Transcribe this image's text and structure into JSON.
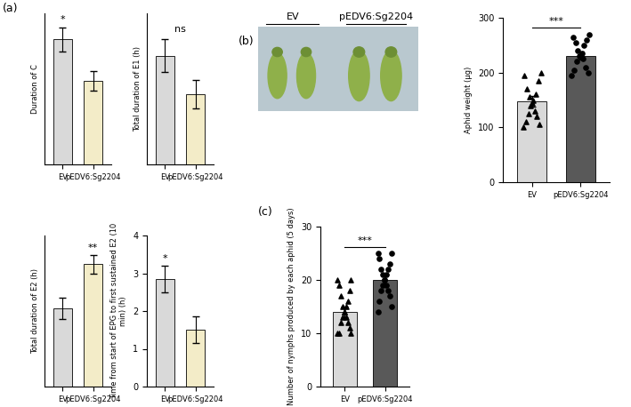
{
  "panel_labels": [
    "(a)",
    "(b)",
    "(c)"
  ],
  "photo": {
    "labels": [
      "EV",
      "pEDV6:Sg2204"
    ]
  },
  "chart_data": [
    {
      "type": "bar",
      "categories": [
        "EV",
        "pEDV6:Sg2204"
      ],
      "values": [
        3.15,
        2.1
      ],
      "errors": [
        0.3,
        0.25
      ],
      "colors": [
        "#d9d9d9",
        "#f3ecc8"
      ],
      "ylabel": "Duration of C",
      "ylim": [
        0,
        3.8
      ],
      "tick_labels": "x",
      "annotation": {
        "text": "*",
        "category": "EV"
      }
    },
    {
      "type": "bar",
      "categories": [
        "EV",
        "pEDV6:Sg2204"
      ],
      "values": [
        0.54,
        0.35
      ],
      "errors": [
        0.08,
        0.07
      ],
      "colors": [
        "#d9d9d9",
        "#f3ecc8"
      ],
      "ylabel": "Total duration of E1 (h)",
      "ylim": [
        0,
        0.75
      ],
      "tick_labels": "x",
      "annotation": {
        "text": "ns",
        "category": null
      }
    },
    {
      "type": "bar",
      "categories": [
        "EV",
        "pEDV6:Sg2204"
      ],
      "values": [
        3.0,
        4.7
      ],
      "errors": [
        0.4,
        0.35
      ],
      "colors": [
        "#d9d9d9",
        "#f3ecc8"
      ],
      "ylabel": "Total duration of E2 (h)",
      "ylim": [
        0,
        5.8
      ],
      "tick_labels": "x",
      "annotation": {
        "text": "**",
        "category": "pEDV6:Sg2204"
      }
    },
    {
      "type": "bar",
      "categories": [
        "EV",
        "pEDV6:Sg2204"
      ],
      "values": [
        2.85,
        1.5
      ],
      "errors": [
        0.35,
        0.35
      ],
      "colors": [
        "#d9d9d9",
        "#f3ecc8"
      ],
      "ylabel": "Time from start of EPG to first sustained E2 (10 min) (h)",
      "ylim": [
        0,
        4
      ],
      "yticks": [
        0,
        1,
        2,
        3,
        4
      ],
      "annotation": {
        "text": "*",
        "category": "EV"
      }
    },
    {
      "type": "bar",
      "categories": [
        "EV",
        "pEDV6:Sg2204"
      ],
      "values": [
        148,
        231
      ],
      "errors": [
        10,
        8
      ],
      "colors": [
        "#d9d9d9",
        "#595959"
      ],
      "ylabel": "Aphid weight (μg)",
      "ylim": [
        0,
        300
      ],
      "yticks": [
        0,
        100,
        200,
        300
      ],
      "marker": [
        "triangle",
        "circle"
      ],
      "points": [
        [
          100,
          105,
          110,
          120,
          125,
          130,
          140,
          145,
          150,
          155,
          160,
          170,
          185,
          195,
          200
        ],
        [
          195,
          200,
          205,
          210,
          220,
          225,
          230,
          230,
          235,
          240,
          250,
          255,
          260,
          265,
          270
        ]
      ],
      "annotation": {
        "text": "***",
        "category": null
      }
    },
    {
      "type": "bar",
      "categories": [
        "EV",
        "pEDV6:Sg2204"
      ],
      "values": [
        14,
        20
      ],
      "errors": [
        1,
        1
      ],
      "colors": [
        "#d9d9d9",
        "#595959"
      ],
      "ylabel": "Number of nymphs produced by each aphid (5 days)",
      "ylim": [
        0,
        30
      ],
      "yticks": [
        0,
        10,
        20,
        30
      ],
      "marker": [
        "triangle",
        "circle"
      ],
      "points": [
        [
          10,
          10,
          10,
          11,
          12,
          12,
          13,
          13,
          14,
          14,
          15,
          15,
          16,
          17,
          18,
          19,
          20,
          20
        ],
        [
          14,
          15,
          16,
          17,
          18,
          18,
          19,
          19,
          20,
          20,
          21,
          21,
          22,
          22,
          23,
          24,
          25,
          25
        ]
      ],
      "annotation": {
        "text": "***",
        "category": null
      }
    }
  ]
}
